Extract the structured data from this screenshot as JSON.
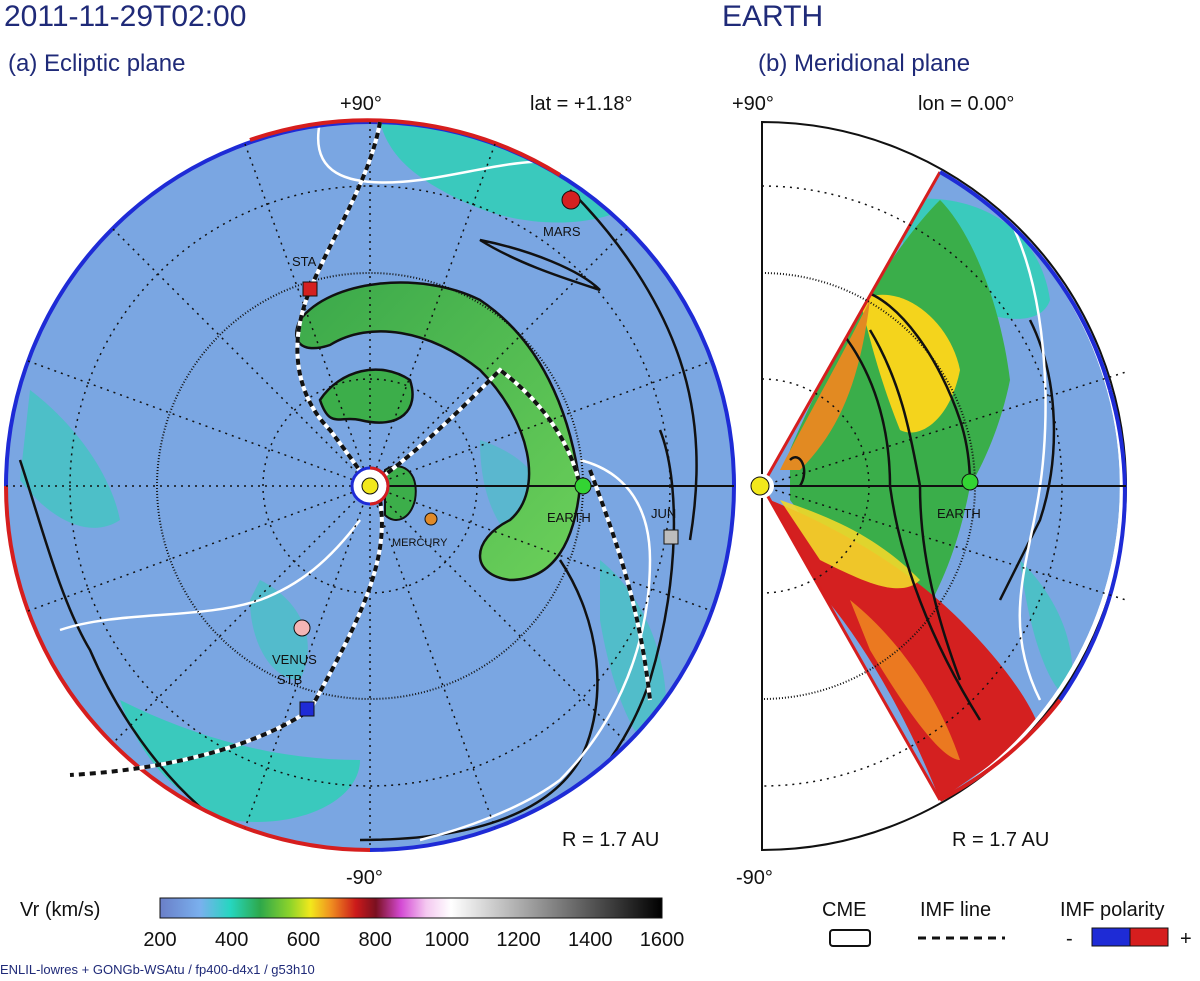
{
  "header": {
    "datetime": "2011-11-29T02:00",
    "target": "EARTH"
  },
  "panel_a": {
    "title": "(a) Ecliptic plane",
    "top_label": "+90°",
    "bottom_label": "-90°",
    "lat_label": "lat = +1.18°",
    "radius_label": "R = 1.7 AU",
    "bodies": [
      "STA",
      "MARS",
      "EARTH",
      "MERCURY",
      "JUN",
      "VENUS",
      "STB"
    ]
  },
  "panel_b": {
    "title": "(b) Meridional plane",
    "top_label": "+90°",
    "bottom_label": "-90°",
    "lon_label": "lon = 0.00°",
    "radius_label": "R = 1.7 AU",
    "bodies": [
      "EARTH"
    ]
  },
  "colorbar": {
    "label": "Vr (km/s)",
    "ticks": [
      "200",
      "400",
      "600",
      "800",
      "1000",
      "1200",
      "1400",
      "1600"
    ],
    "min": 200,
    "max": 1600
  },
  "legend": {
    "cme": "CME",
    "imf_line": "IMF line",
    "imf_polarity": "IMF polarity",
    "minus": "-",
    "plus": "+"
  },
  "footer": "ENLIL-lowres + GONGb-WSAtu / fp400-d4x1 / g53h10",
  "colors": {
    "title_navy": "#1f2a78",
    "slow_wind": "#78a6e0",
    "fast_wind": "#26c9a8",
    "cme_green": "#49b84a",
    "cme_red": "#d42020",
    "imf_negative": "#1e2bd6",
    "imf_positive": "#d61e1e"
  },
  "chart_data": [
    {
      "type": "heatmap",
      "title": "(a) Ecliptic plane",
      "quantity": "Vr (km/s)",
      "radial_extent_au": 1.7,
      "bodies": [
        {
          "name": "STA",
          "marker": "square",
          "color": "#d42020"
        },
        {
          "name": "MARS",
          "marker": "circle",
          "color": "#d42020"
        },
        {
          "name": "EARTH",
          "marker": "circle",
          "color": "#33d433"
        },
        {
          "name": "MERCURY",
          "marker": "circle",
          "color": "#e08a28"
        },
        {
          "name": "JUN",
          "marker": "square",
          "color": "#bdbdbd"
        },
        {
          "name": "VENUS",
          "marker": "circle",
          "color": "#f4b5b5"
        },
        {
          "name": "STB",
          "marker": "square",
          "color": "#1e2bd6"
        }
      ]
    },
    {
      "type": "heatmap",
      "title": "(b) Meridional plane",
      "quantity": "Vr (km/s)",
      "radial_extent_au": 1.7,
      "latitude_range_deg": [
        -60,
        60
      ],
      "bodies": [
        {
          "name": "EARTH",
          "marker": "circle",
          "color": "#33d433"
        }
      ]
    }
  ]
}
